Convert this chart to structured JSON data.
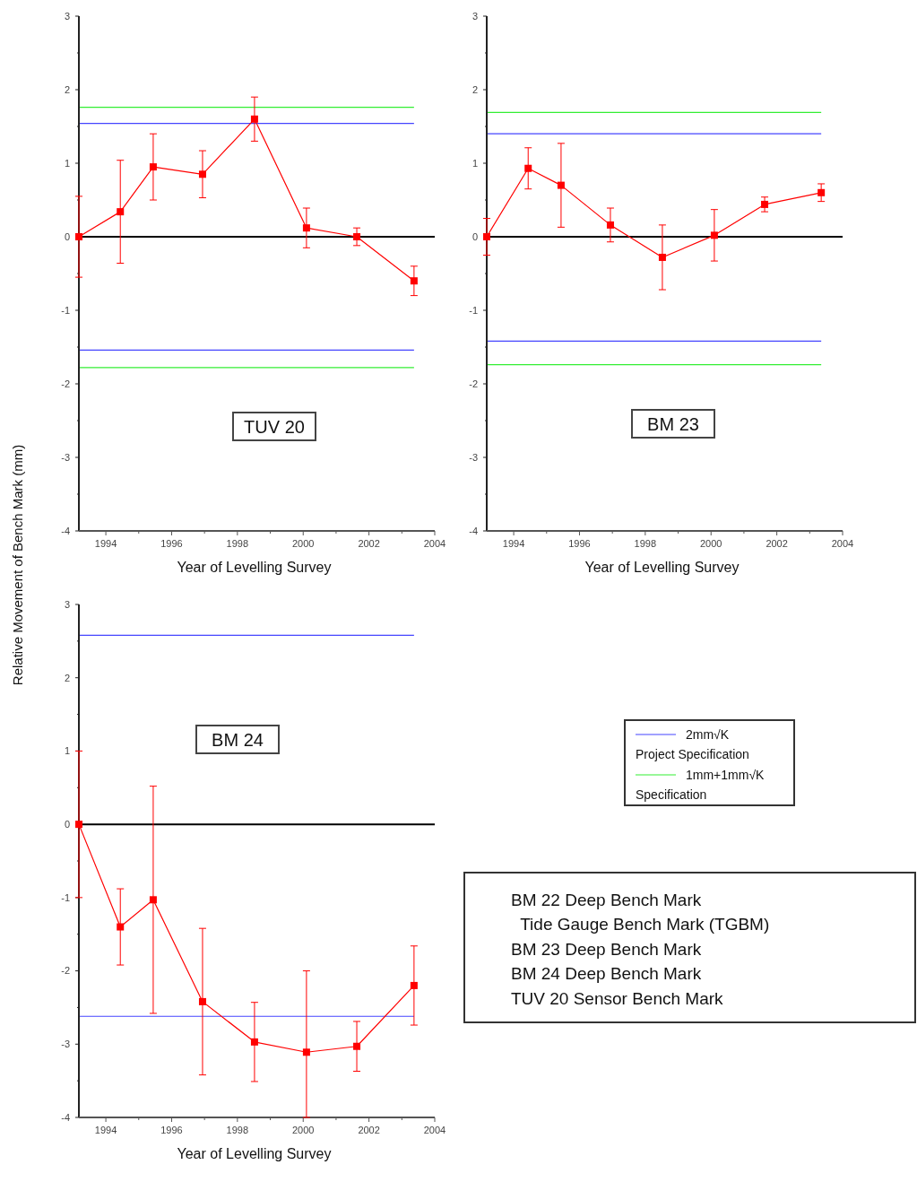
{
  "chart_data": [
    {
      "type": "line",
      "title": "TUV 20",
      "xlabel": "Year of Levelling Survey",
      "ylabel": "Relative Movement of Bench Mark (mm)",
      "marker": "square",
      "line_style": "solid",
      "grid": false,
      "xlim": [
        1993.18,
        2004
      ],
      "ylim": [
        -4,
        3
      ],
      "xticks": [
        1994,
        {
          "value": 1995,
          "label": null
        },
        1996,
        {
          "value": 1997,
          "label": null
        },
        1998,
        {
          "value": 1999,
          "label": null
        },
        2000,
        {
          "value": 2001,
          "label": null
        },
        2002,
        {
          "value": 2003,
          "label": null
        },
        2004
      ],
      "yticks": [
        -4,
        {
          "value": -3.5,
          "label": null
        },
        -3,
        {
          "value": -2.5,
          "label": null
        },
        -2,
        {
          "value": -1.5,
          "label": null
        },
        -1,
        {
          "value": -0.5,
          "label": null
        },
        0,
        {
          "value": 0.5,
          "label": null
        },
        1,
        {
          "value": 1.5,
          "label": null
        },
        2,
        {
          "value": 2.5,
          "label": null
        },
        3
      ],
      "x": [
        1993.18,
        1994.44,
        1995.44,
        1996.94,
        1998.52,
        2000.1,
        2001.63,
        2003.37
      ],
      "series": [
        {
          "color": "#ff0000",
          "values": [
            0,
            0.34,
            0.95,
            0.85,
            1.6,
            0.12,
            0,
            -0.6
          ],
          "errors": [
            0.55,
            0.7,
            0.45,
            0.32,
            0.3,
            0.27,
            0.12,
            0.2
          ]
        }
      ],
      "ref_lines": [
        {
          "axis": "y",
          "value": 0,
          "color": "#000000"
        },
        {
          "axis": "y",
          "value": 1.76,
          "color": "#33ee33"
        },
        {
          "axis": "y",
          "value": 1.54,
          "color": "#4444ff"
        },
        {
          "axis": "y",
          "value": -1.54,
          "color": "#4444ff"
        },
        {
          "axis": "y",
          "value": -1.78,
          "color": "#33ee33"
        }
      ]
    },
    {
      "type": "line",
      "title": "BM 23",
      "xlabel": "Year of Levelling Survey",
      "marker": "square",
      "line_style": "solid",
      "grid": false,
      "legend": "bottom",
      "xlim": [
        1993.18,
        2004
      ],
      "ylim": [
        -4,
        3
      ],
      "xticks": [
        1994,
        {
          "value": 1995,
          "label": null
        },
        1996,
        {
          "value": 1997,
          "label": null
        },
        1998,
        {
          "value": 1999,
          "label": null
        },
        2000,
        {
          "value": 2001,
          "label": null
        },
        2002,
        {
          "value": 2003,
          "label": null
        },
        2004
      ],
      "yticks": [
        -4,
        {
          "value": -3.5,
          "label": null
        },
        -3,
        {
          "value": -2.5,
          "label": null
        },
        -2,
        {
          "value": -1.5,
          "label": null
        },
        -1,
        {
          "value": -0.5,
          "label": null
        },
        0,
        {
          "value": 0.5,
          "label": null
        },
        1,
        {
          "value": 1.5,
          "label": null
        },
        2,
        {
          "value": 2.5,
          "label": null
        },
        3
      ],
      "x": [
        1993.18,
        1994.44,
        1995.44,
        1996.94,
        1998.52,
        2000.1,
        2001.63,
        2003.35
      ],
      "series": [
        {
          "color": "#ff0000",
          "values": [
            0,
            0.93,
            0.7,
            0.16,
            -0.28,
            0.02,
            0.44,
            0.6
          ],
          "errors": [
            0.25,
            0.28,
            0.57,
            0.23,
            0.44,
            0.35,
            0.1,
            0.12
          ]
        }
      ],
      "ref_lines": [
        {
          "axis": "y",
          "value": 0,
          "color": "#000000"
        },
        {
          "axis": "y",
          "value": 1.4,
          "color": "#4444ff",
          "label": "2mm√K Project Specification"
        },
        {
          "axis": "y",
          "value": 1.69,
          "color": "#33ee33",
          "label": "1mm+1mm√K Specification"
        },
        {
          "axis": "y",
          "value": -1.42,
          "color": "#4444ff"
        },
        {
          "axis": "y",
          "value": -1.74,
          "color": "#33ee33"
        }
      ]
    },
    {
      "type": "line",
      "title": "BM 24",
      "xlabel": "Year of Levelling Survey",
      "marker": "square",
      "line_style": "solid",
      "grid": false,
      "xlim": [
        1993.18,
        2004
      ],
      "ylim": [
        -4,
        3
      ],
      "xticks": [
        1994,
        {
          "value": 1995,
          "label": null
        },
        1996,
        {
          "value": 1997,
          "label": null
        },
        1998,
        {
          "value": 1999,
          "label": null
        },
        2000,
        {
          "value": 2001,
          "label": null
        },
        2002,
        {
          "value": 2003,
          "label": null
        },
        2004
      ],
      "yticks": [
        -4,
        {
          "value": -3.5,
          "label": null
        },
        -3,
        {
          "value": -2.5,
          "label": null
        },
        -2,
        {
          "value": -1.5,
          "label": null
        },
        -1,
        {
          "value": -0.5,
          "label": null
        },
        0,
        {
          "value": 0.5,
          "label": null
        },
        1,
        {
          "value": 1.5,
          "label": null
        },
        2,
        {
          "value": 2.5,
          "label": null
        },
        3
      ],
      "x": [
        1993.18,
        1994.44,
        1995.44,
        1996.94,
        1998.52,
        2000.1,
        2001.63,
        2003.37
      ],
      "series": [
        {
          "color": "#ff0000",
          "values": [
            0,
            -1.4,
            -1.03,
            -2.42,
            -2.97,
            -3.11,
            -3.03,
            -2.2
          ],
          "errors": [
            1.0,
            0.52,
            1.55,
            1.0,
            0.54,
            [
              -4,
              -2
            ],
            0.34,
            0.54
          ]
        }
      ],
      "ref_lines": [
        {
          "axis": "y",
          "value": 0,
          "color": "#000000"
        },
        {
          "axis": "y",
          "value": 2.58,
          "color": "#4444ff"
        },
        {
          "axis": "y",
          "value": -2.62,
          "color": "#4444ff"
        }
      ],
      "annotations": [
        "BM 22 Deep Bench Mark",
        "  Tide Gauge Bench Mark (TGBM)",
        "BM 23 Deep Bench Mark",
        "BM 24 Deep Bench Mark",
        "TUV 20 Sensor Bench Mark"
      ]
    }
  ]
}
